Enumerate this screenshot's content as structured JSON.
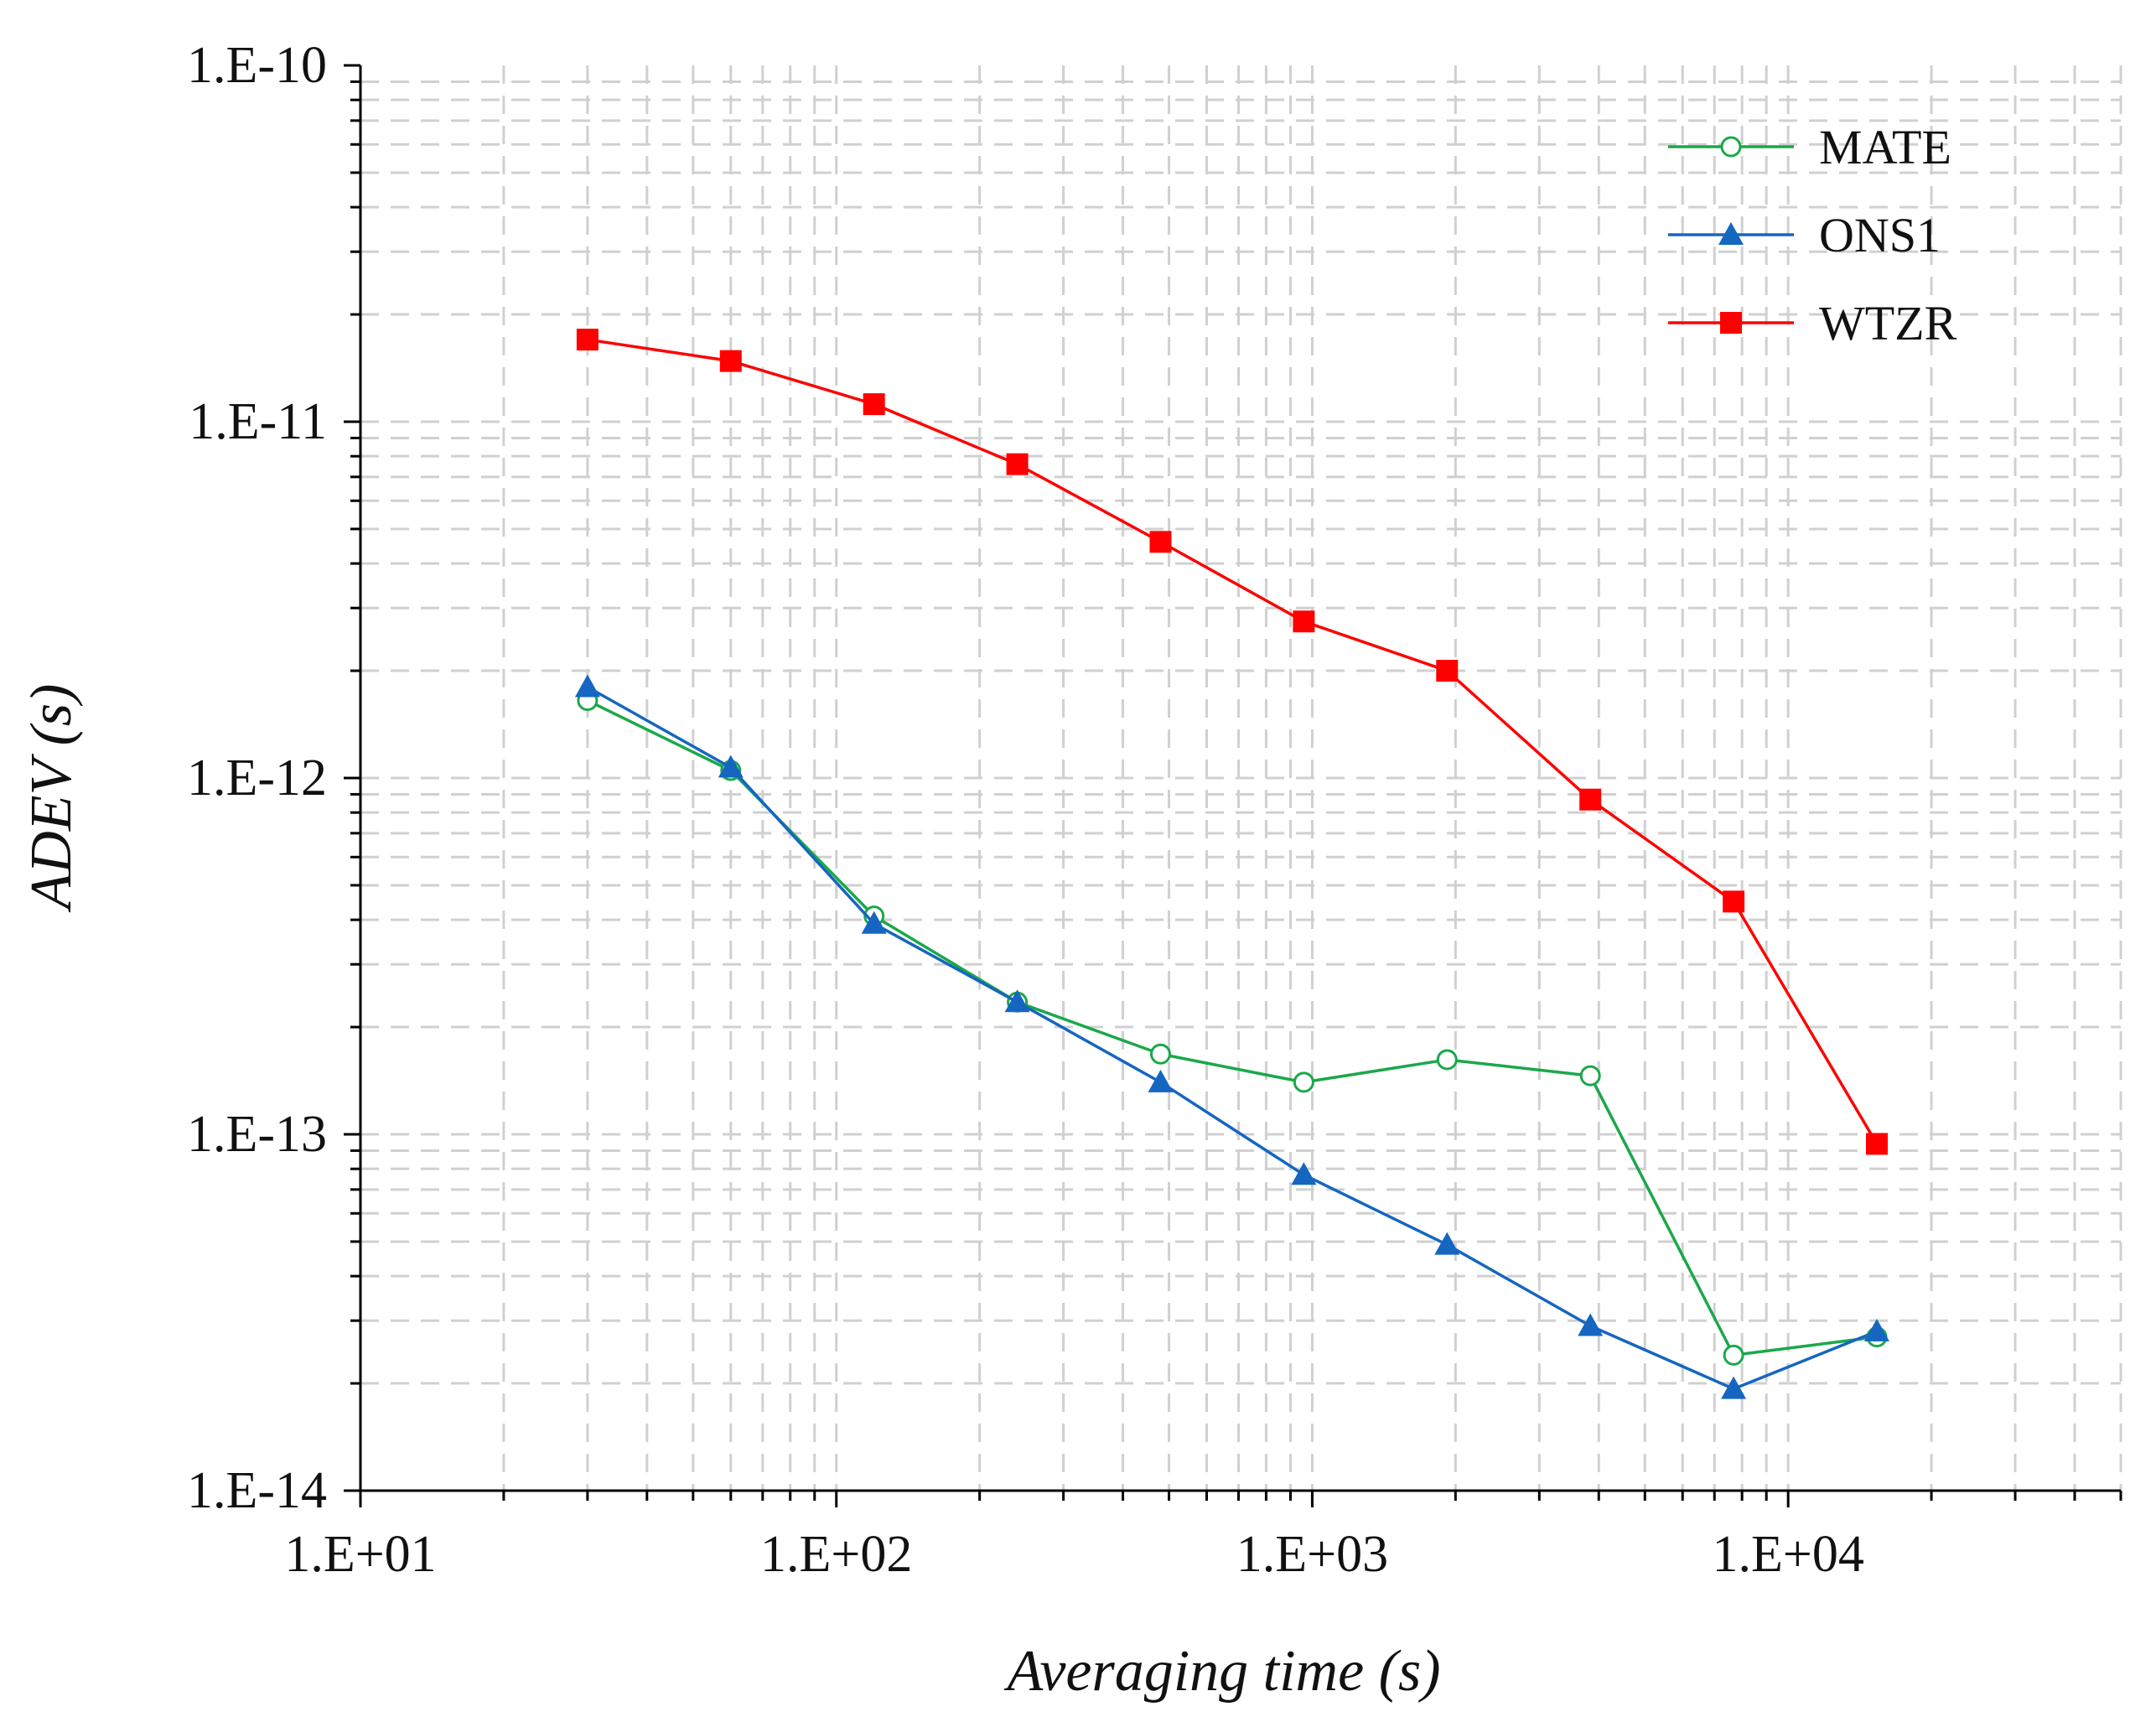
{
  "chart_data": {
    "type": "line",
    "scale": {
      "x": "log",
      "y": "log"
    },
    "title": "",
    "xlabel": "Averaging time (s)",
    "ylabel": "ADEV (s)",
    "xlim": [
      10,
      50000
    ],
    "ylim": [
      1e-14,
      1e-10
    ],
    "grid": true,
    "legend_position": "top-right",
    "x_ticks": [
      10,
      100,
      1000,
      10000
    ],
    "x_tick_labels": [
      "1.E+01",
      "1.E+02",
      "1.E+03",
      "1.E+04"
    ],
    "y_ticks": [
      1e-14,
      1e-13,
      1e-12,
      1e-11,
      1e-10
    ],
    "y_tick_labels": [
      "1.E-14",
      "1.E-13",
      "1.E-12",
      "1.E-11",
      "1.E-10"
    ],
    "x": [
      30,
      60,
      120,
      240,
      480,
      960,
      1920,
      3840,
      7680,
      15360
    ],
    "series": [
      {
        "name": "MATE",
        "color": "#1aa84a",
        "marker": "circle-open",
        "values": [
          1.65e-12,
          1.05e-12,
          4.1e-13,
          2.35e-13,
          1.68e-13,
          1.4e-13,
          1.62e-13,
          1.46e-13,
          2.4e-14,
          2.7e-14
        ]
      },
      {
        "name": "ONS1",
        "color": "#1566c0",
        "marker": "triangle",
        "values": [
          1.8e-12,
          1.07e-12,
          3.9e-13,
          2.35e-13,
          1.4e-13,
          7.7e-14,
          4.9e-14,
          2.9e-14,
          1.93e-14,
          2.8e-14
        ]
      },
      {
        "name": "WTZR",
        "color": "#ff0000",
        "marker": "square",
        "values": [
          1.7e-11,
          1.48e-11,
          1.12e-11,
          7.6e-12,
          4.6e-12,
          2.75e-12,
          2e-12,
          8.7e-13,
          4.5e-13,
          9.4e-14
        ]
      }
    ]
  }
}
